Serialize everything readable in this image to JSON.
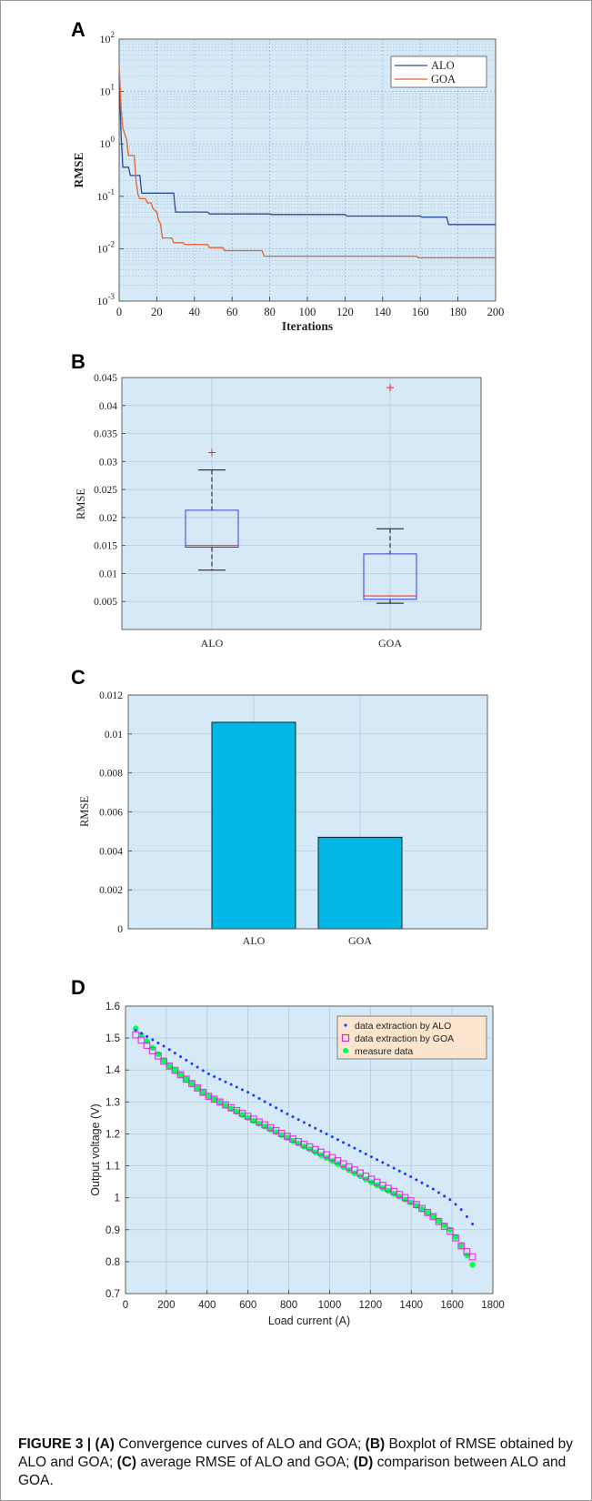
{
  "figure": {
    "panel_letters": [
      "A",
      "B",
      "C",
      "D"
    ],
    "caption": {
      "label": "FIGURE 3 | ",
      "parts": [
        {
          "b": "(A)",
          "t": " Convergence curves of ALO and GOA; "
        },
        {
          "b": "(B)",
          "t": " Boxplot of RMSE obtained by ALO and GOA; "
        },
        {
          "b": "(C)",
          "t": " average RMSE of ALO and GOA; "
        },
        {
          "b": "(D)",
          "t": " comparison between ALO and GOA."
        }
      ]
    }
  },
  "colors": {
    "plot_bg": "#d5e9f7",
    "alo_line": "#2b4a9a",
    "goa_line": "#e8622a",
    "bar": "#00b7e6",
    "box": "#3a3adf",
    "median": "#ff3333",
    "outlier": "#ff2020",
    "dot_alo": "#1a3cff",
    "square_goa": "#e020e0",
    "measure": "#00ff50"
  },
  "chart_data": [
    {
      "type": "line",
      "panel": "A",
      "xlabel": "Iterations",
      "ylabel": "RMSE",
      "xlim": [
        0,
        200
      ],
      "ylim_log10": [
        -3,
        2
      ],
      "xticks": [
        "0",
        "20",
        "40",
        "60",
        "80",
        "100",
        "120",
        "140",
        "160",
        "180",
        "200"
      ],
      "yticks": [
        {
          "base": "10",
          "exp": "-3"
        },
        {
          "base": "10",
          "exp": "-2"
        },
        {
          "base": "10",
          "exp": "-1"
        },
        {
          "base": "10",
          "exp": "0"
        },
        {
          "base": "10",
          "exp": "1"
        },
        {
          "base": "10",
          "exp": "2"
        }
      ],
      "scale": "log",
      "grid": true,
      "legend": "top-right",
      "series": [
        {
          "name": "ALO",
          "points": [
            [
              0,
              20
            ],
            [
              1,
              1.5
            ],
            [
              2,
              0.36
            ],
            [
              5,
              0.36
            ],
            [
              6,
              0.25
            ],
            [
              11,
              0.25
            ],
            [
              12,
              0.115
            ],
            [
              29,
              0.115
            ],
            [
              30,
              0.05
            ],
            [
              47,
              0.05
            ],
            [
              48,
              0.046
            ],
            [
              80,
              0.046
            ],
            [
              81,
              0.045
            ],
            [
              120,
              0.045
            ],
            [
              121,
              0.042
            ],
            [
              160,
              0.042
            ],
            [
              161,
              0.04
            ],
            [
              174,
              0.04
            ],
            [
              175,
              0.029
            ],
            [
              200,
              0.029
            ]
          ]
        },
        {
          "name": "GOA",
          "points": [
            [
              0,
              30
            ],
            [
              1,
              5
            ],
            [
              2,
              2
            ],
            [
              4,
              1.2
            ],
            [
              5,
              0.6
            ],
            [
              8,
              0.6
            ],
            [
              9,
              0.2
            ],
            [
              10,
              0.11
            ],
            [
              11,
              0.09
            ],
            [
              14,
              0.09
            ],
            [
              15,
              0.075
            ],
            [
              17,
              0.075
            ],
            [
              18,
              0.058
            ],
            [
              20,
              0.05
            ],
            [
              21,
              0.035
            ],
            [
              22,
              0.03
            ],
            [
              23,
              0.016
            ],
            [
              28,
              0.016
            ],
            [
              29,
              0.013
            ],
            [
              34,
              0.013
            ],
            [
              35,
              0.012
            ],
            [
              47,
              0.012
            ],
            [
              48,
              0.0105
            ],
            [
              55,
              0.0105
            ],
            [
              56,
              0.0092
            ],
            [
              76,
              0.0092
            ],
            [
              77,
              0.0072
            ],
            [
              158,
              0.0072
            ],
            [
              159,
              0.0067
            ],
            [
              200,
              0.0067
            ]
          ]
        }
      ]
    },
    {
      "type": "box",
      "panel": "B",
      "ylabel": "RMSE",
      "ylim": [
        0.0,
        0.045
      ],
      "yticks": [
        "0.005",
        "0.01",
        "0.015",
        "0.02",
        "0.025",
        "0.03",
        "0.035",
        "0.04",
        "0.045"
      ],
      "categories": [
        "ALO",
        "GOA"
      ],
      "boxes": [
        {
          "name": "ALO",
          "lower_whisker": 0.0106,
          "q1": 0.0147,
          "median": 0.015,
          "q3": 0.0213,
          "upper_whisker": 0.0285,
          "outliers": [
            0.0316
          ]
        },
        {
          "name": "GOA",
          "lower_whisker": 0.0047,
          "q1": 0.0054,
          "median": 0.006,
          "q3": 0.0135,
          "upper_whisker": 0.018,
          "outliers": [
            0.0432
          ]
        }
      ],
      "grid": true
    },
    {
      "type": "bar",
      "panel": "C",
      "ylabel": "RMSE",
      "categories": [
        "ALO",
        "GOA"
      ],
      "values": [
        0.0106,
        0.0047
      ],
      "ylim": [
        0,
        0.012
      ],
      "yticks": [
        "0",
        "0.002",
        "0.004",
        "0.006",
        "0.008",
        "0.01",
        "0.012"
      ],
      "grid": true
    },
    {
      "type": "scatter",
      "panel": "D",
      "xlabel": "Load current (A)",
      "ylabel": "Output voltage (V)",
      "xlim": [
        0,
        1800
      ],
      "ylim": [
        0.7,
        1.6
      ],
      "xticks": [
        "0",
        "200",
        "400",
        "600",
        "800",
        "1000",
        "1200",
        "1400",
        "1600",
        "1800"
      ],
      "yticks": [
        "0.7",
        "0.8",
        "0.9",
        "1",
        "1.1",
        "1.2",
        "1.3",
        "1.4",
        "1.5",
        "1.6"
      ],
      "legend": "top-right",
      "grid": true,
      "x_range": [
        50,
        1700
      ],
      "point_count": 61,
      "series": [
        {
          "name": "data extraction by ALO",
          "marker": "dot",
          "curve_points": [
            [
              50,
              1.525
            ],
            [
              200,
              1.47
            ],
            [
              400,
              1.39
            ],
            [
              600,
              1.33
            ],
            [
              800,
              1.26
            ],
            [
              1000,
              1.195
            ],
            [
              1200,
              1.13
            ],
            [
              1400,
              1.065
            ],
            [
              1500,
              1.03
            ],
            [
              1600,
              0.99
            ],
            [
              1650,
              0.96
            ],
            [
              1700,
              0.918
            ]
          ]
        },
        {
          "name": "data extraction by GOA",
          "marker": "square",
          "curve_points": [
            [
              50,
              1.51
            ],
            [
              200,
              1.42
            ],
            [
              400,
              1.32
            ],
            [
              600,
              1.255
            ],
            [
              800,
              1.19
            ],
            [
              1000,
              1.13
            ],
            [
              1200,
              1.06
            ],
            [
              1400,
              0.99
            ],
            [
              1500,
              0.945
            ],
            [
              1600,
              0.89
            ],
            [
              1650,
              0.845
            ],
            [
              1700,
              0.815
            ]
          ]
        },
        {
          "name": "measure data",
          "marker": "circle",
          "curve_points": [
            [
              50,
              1.53
            ],
            [
              200,
              1.42
            ],
            [
              400,
              1.32
            ],
            [
              600,
              1.25
            ],
            [
              800,
              1.185
            ],
            [
              1000,
              1.12
            ],
            [
              1200,
              1.05
            ],
            [
              1400,
              0.985
            ],
            [
              1500,
              0.945
            ],
            [
              1600,
              0.895
            ],
            [
              1650,
              0.845
            ],
            [
              1700,
              0.79
            ]
          ]
        }
      ]
    }
  ]
}
